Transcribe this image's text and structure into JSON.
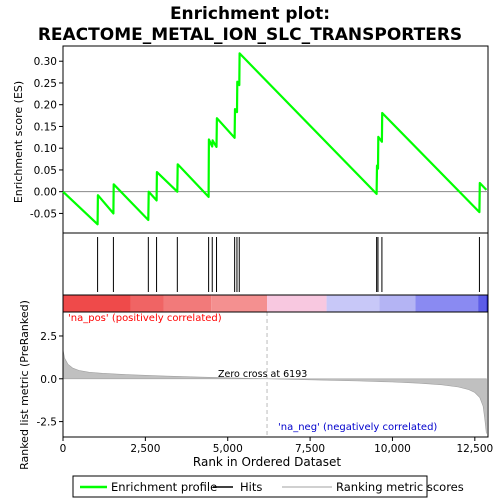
{
  "chart_data": {
    "type": "line",
    "title_line1": "Enrichment plot:",
    "title_line2": "REACTOME_METAL_ION_SLC_TRANSPORTERS",
    "top_ylabel": "Enrichment score (ES)",
    "bottom_ylabel": "Ranked list metric (PreRanked)",
    "xlabel": "Rank in Ordered Dataset",
    "x_ticks": [
      "0",
      "2,500",
      "5,000",
      "7,500",
      "10,000",
      "12,500"
    ],
    "x_tick_values": [
      0,
      2500,
      5000,
      7500,
      10000,
      12500
    ],
    "xlim": [
      0,
      12900
    ],
    "es_ylim": [
      -0.095,
      0.335
    ],
    "es_ticks": [
      "-0.05",
      "0.00",
      "0.05",
      "0.10",
      "0.15",
      "0.20",
      "0.25",
      "0.30"
    ],
    "es_tick_values": [
      -0.05,
      0.0,
      0.05,
      0.1,
      0.15,
      0.2,
      0.25,
      0.3
    ],
    "metric_ylim": [
      -3.4,
      3.9
    ],
    "metric_ticks": [
      "2.5",
      "0.0",
      "-2.5"
    ],
    "metric_tick_values": [
      2.5,
      0.0,
      -2.5
    ],
    "es_series": {
      "name": "Enrichment profile",
      "color": "#00ff00",
      "x": [
        0,
        1050,
        1060,
        1530,
        1540,
        2590,
        2600,
        2840,
        2850,
        3470,
        3480,
        4420,
        4430,
        4530,
        4540,
        4660,
        4670,
        5210,
        5220,
        5280,
        5290,
        5350,
        5360,
        9520,
        9530,
        9560,
        9570,
        9680,
        9690,
        12640,
        12650,
        12850
      ],
      "y": [
        0.0,
        -0.075,
        -0.008,
        -0.05,
        0.017,
        -0.065,
        0.0,
        -0.02,
        0.045,
        0.0,
        0.063,
        -0.012,
        0.12,
        0.104,
        0.118,
        0.103,
        0.169,
        0.124,
        0.19,
        0.183,
        0.253,
        0.245,
        0.318,
        -0.005,
        0.06,
        0.053,
        0.126,
        0.115,
        0.181,
        -0.047,
        0.02,
        0.004
      ]
    },
    "hits": [
      1050,
      1530,
      2590,
      2840,
      3470,
      4420,
      4530,
      4660,
      5210,
      5280,
      5350,
      9520,
      9560,
      9680,
      12640
    ],
    "hits_color": "#000000",
    "metric_curve": {
      "name": "Ranking metric scores",
      "color": "#c0c0c0",
      "x": [
        0,
        50,
        150,
        300,
        500,
        800,
        1200,
        2000,
        3000,
        4000,
        5000,
        6193,
        7000,
        8000,
        9000,
        10000,
        10800,
        11500,
        12000,
        12300,
        12500,
        12650,
        12750,
        12800,
        12850
      ],
      "y": [
        1.7,
        1.2,
        0.85,
        0.62,
        0.48,
        0.38,
        0.32,
        0.24,
        0.17,
        0.11,
        0.06,
        0.0,
        -0.04,
        -0.08,
        -0.13,
        -0.19,
        -0.26,
        -0.35,
        -0.48,
        -0.62,
        -0.8,
        -1.1,
        -1.6,
        -2.3,
        -3.2
      ]
    },
    "zero_cross_label": "Zero cross at 6193",
    "zero_cross_x": 6193,
    "pos_label": "'na_pos' (positively correlated)",
    "neg_label": "'na_neg' (negatively correlated)",
    "pos_label_color": "#ff0000",
    "neg_label_color": "#0000cc",
    "heat_colors": [
      "#ef4a4a",
      "#f06464",
      "#f27a7a",
      "#f49090",
      "#f8c8e0",
      "#c8c8f8",
      "#b4b4f4",
      "#8a8af2",
      "#5c5ce8",
      "#2020cc"
    ],
    "heat_breaks": [
      0,
      2050,
      3050,
      4500,
      6193,
      8000,
      9600,
      10700,
      12600,
      12850
    ],
    "legend": {
      "items": [
        "Enrichment profile",
        "Hits",
        "Ranking metric scores"
      ],
      "colors": [
        "#00ff00",
        "#000000",
        "#c0c0c0"
      ]
    }
  }
}
